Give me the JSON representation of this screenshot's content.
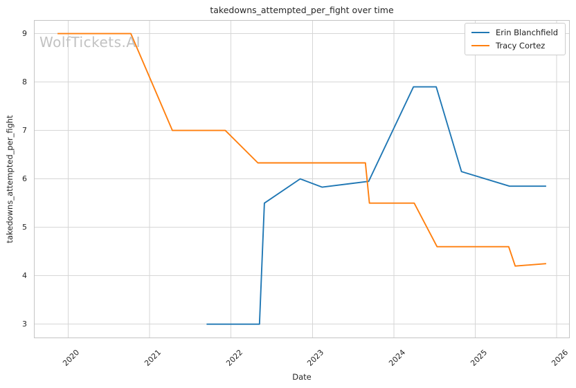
{
  "watermark": "WolfTickets.AI",
  "style": {
    "background": "#ffffff",
    "grid_color": "#d6d6d6",
    "spine_color": "#c4c4c4",
    "text_color": "#262626",
    "watermark_color": "#c2c2c2",
    "legend_border_color": "#cccccc"
  },
  "chart_data": {
    "type": "line",
    "title": "takedowns_attempted_per_fight over time",
    "xlabel": "Date",
    "ylabel": "takedowns_attempted_per_fight",
    "xlim": [
      2019.58,
      2026.16
    ],
    "ylim": [
      2.71,
      9.28
    ],
    "x_ticks": [
      2020,
      2021,
      2022,
      2023,
      2024,
      2025,
      2026
    ],
    "y_ticks": [
      3,
      4,
      5,
      6,
      7,
      8,
      9
    ],
    "grid": true,
    "legend_position": "upper right",
    "series": [
      {
        "name": "Erin Blanchfield",
        "color": "#1f77b4",
        "points": [
          [
            2021.7,
            3.0
          ],
          [
            2022.35,
            3.0
          ],
          [
            2022.41,
            5.5
          ],
          [
            2022.85,
            6.0
          ],
          [
            2023.12,
            5.83
          ],
          [
            2023.69,
            5.95
          ],
          [
            2024.24,
            7.9
          ],
          [
            2024.52,
            7.9
          ],
          [
            2024.83,
            6.15
          ],
          [
            2025.42,
            5.85
          ],
          [
            2025.87,
            5.85
          ]
        ]
      },
      {
        "name": "Tracy Cortez",
        "color": "#ff7f0e",
        "points": [
          [
            2019.87,
            9.0
          ],
          [
            2020.77,
            9.0
          ],
          [
            2021.28,
            7.0
          ],
          [
            2021.93,
            7.0
          ],
          [
            2022.33,
            6.33
          ],
          [
            2023.65,
            6.33
          ],
          [
            2023.7,
            5.5
          ],
          [
            2024.25,
            5.5
          ],
          [
            2024.53,
            4.6
          ],
          [
            2025.41,
            4.6
          ],
          [
            2025.49,
            4.2
          ],
          [
            2025.87,
            4.25
          ]
        ]
      }
    ]
  }
}
